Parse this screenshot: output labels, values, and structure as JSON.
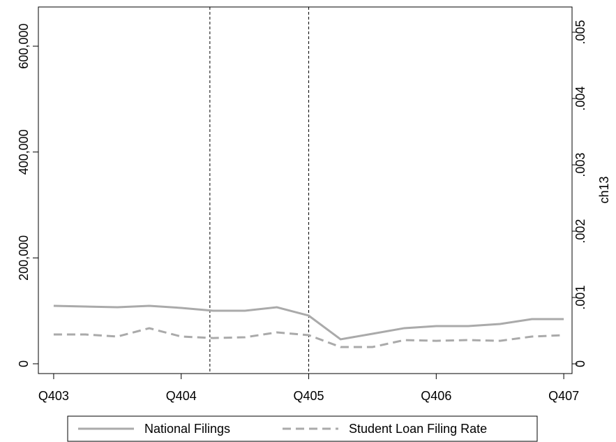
{
  "chart_data": {
    "type": "line",
    "x": [
      0,
      1,
      2,
      3,
      4,
      5,
      6,
      7,
      8,
      9,
      10,
      11,
      12,
      13,
      14,
      15,
      16
    ],
    "xlim": [
      -0.48,
      16.26
    ],
    "xticks": [
      {
        "value": 0,
        "label": "Q403"
      },
      {
        "value": 4,
        "label": "Q404"
      },
      {
        "value": 8,
        "label": "Q405"
      },
      {
        "value": 12,
        "label": "Q406"
      },
      {
        "value": 16,
        "label": "Q407"
      }
    ],
    "ylim": [
      -18500,
      674000
    ],
    "yticks": [
      0,
      {
        "value": 200000,
        "label": "200,000"
      },
      {
        "value": 400000,
        "label": "400,000"
      },
      {
        "value": 600000,
        "label": "600,000"
      }
    ],
    "y2lim": [
      -0.000147,
      0.00538
    ],
    "y2ticks": [
      0,
      {
        "value": 0.001,
        "label": ".001"
      },
      {
        "value": 0.002,
        "label": ".002"
      },
      {
        "value": 0.003,
        "label": ".003"
      },
      {
        "value": 0.004,
        "label": ".004"
      },
      {
        "value": 0.005,
        "label": ".005"
      }
    ],
    "y2label": "ch13",
    "vlines": [
      4.9,
      8
    ],
    "series": [
      {
        "name": "National Filings",
        "color": "#aaaaaa",
        "dash": false,
        "values": [
          109450,
          108100,
          106800,
          109450,
          105500,
          100200,
          100200,
          106800,
          91000,
          46200,
          56700,
          67300,
          71200,
          71200,
          75200,
          84400,
          84400
        ]
      },
      {
        "name": "Student Loan Filing Rate",
        "color": "#aaaaaa",
        "dash": true,
        "axis": "y2",
        "values": [
          0.000442,
          0.000442,
          0.000411,
          0.000537,
          0.000411,
          0.000389,
          0.0004,
          0.000474,
          0.000432,
          0.000253,
          0.000253,
          0.000358,
          0.000347,
          0.000358,
          0.000347,
          0.000411,
          0.000432
        ]
      }
    ]
  }
}
